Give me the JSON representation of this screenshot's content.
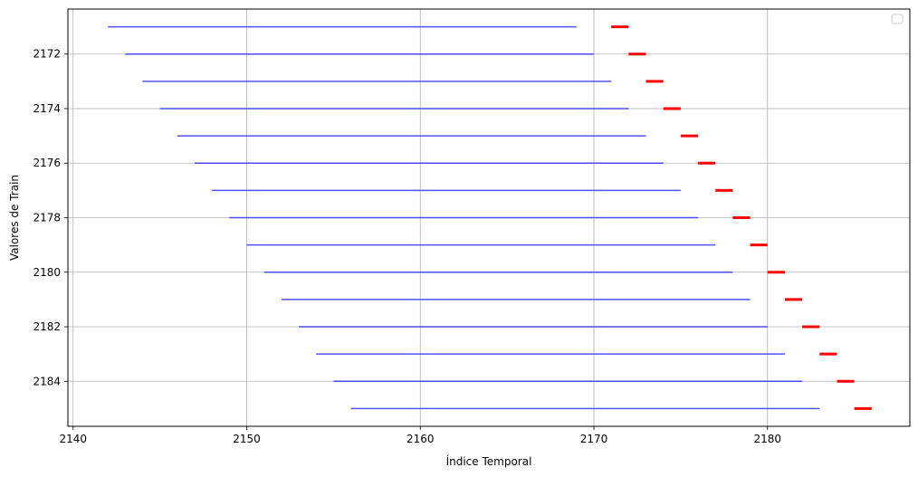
{
  "chart_data": {
    "type": "line",
    "title": "",
    "xlabel": "Índice Temporal",
    "ylabel": "Valores de Train",
    "xlim": [
      2139.7,
      2188.2
    ],
    "ylim": [
      2185.65,
      2170.35
    ],
    "y_inverted": true,
    "grid": true,
    "legend": {
      "placement": "top-right",
      "entries": []
    },
    "xticks": [
      2140,
      2150,
      2160,
      2170,
      2180
    ],
    "yticks": [
      2172,
      2174,
      2176,
      2178,
      2180,
      2182,
      2184
    ],
    "colors": {
      "train": "#3333ff",
      "target": "#ff0000",
      "grid": "#b0b0b0"
    },
    "series": [
      {
        "kind": "train_window",
        "color": "#3333ff",
        "segments": [
          {
            "y": 2171,
            "x_start": 2142,
            "x_end": 2169
          },
          {
            "y": 2172,
            "x_start": 2143,
            "x_end": 2170
          },
          {
            "y": 2173,
            "x_start": 2144,
            "x_end": 2171
          },
          {
            "y": 2174,
            "x_start": 2145,
            "x_end": 2172
          },
          {
            "y": 2175,
            "x_start": 2146,
            "x_end": 2173
          },
          {
            "y": 2176,
            "x_start": 2147,
            "x_end": 2174
          },
          {
            "y": 2177,
            "x_start": 2148,
            "x_end": 2175
          },
          {
            "y": 2178,
            "x_start": 2149,
            "x_end": 2176
          },
          {
            "y": 2179,
            "x_start": 2150,
            "x_end": 2177
          },
          {
            "y": 2180,
            "x_start": 2151,
            "x_end": 2178
          },
          {
            "y": 2181,
            "x_start": 2152,
            "x_end": 2179
          },
          {
            "y": 2182,
            "x_start": 2153,
            "x_end": 2180
          },
          {
            "y": 2183,
            "x_start": 2154,
            "x_end": 2181
          },
          {
            "y": 2184,
            "x_start": 2155,
            "x_end": 2182
          },
          {
            "y": 2185,
            "x_start": 2156,
            "x_end": 2183
          }
        ]
      },
      {
        "kind": "target",
        "color": "#ff0000",
        "segments": [
          {
            "y": 2171,
            "x_start": 2171,
            "x_end": 2172
          },
          {
            "y": 2172,
            "x_start": 2172,
            "x_end": 2173
          },
          {
            "y": 2173,
            "x_start": 2173,
            "x_end": 2174
          },
          {
            "y": 2174,
            "x_start": 2174,
            "x_end": 2175
          },
          {
            "y": 2175,
            "x_start": 2175,
            "x_end": 2176
          },
          {
            "y": 2176,
            "x_start": 2176,
            "x_end": 2177
          },
          {
            "y": 2177,
            "x_start": 2177,
            "x_end": 2178
          },
          {
            "y": 2178,
            "x_start": 2178,
            "x_end": 2179
          },
          {
            "y": 2179,
            "x_start": 2179,
            "x_end": 2180
          },
          {
            "y": 2180,
            "x_start": 2180,
            "x_end": 2181
          },
          {
            "y": 2181,
            "x_start": 2181,
            "x_end": 2182
          },
          {
            "y": 2182,
            "x_start": 2182,
            "x_end": 2183
          },
          {
            "y": 2183,
            "x_start": 2183,
            "x_end": 2184
          },
          {
            "y": 2184,
            "x_start": 2184,
            "x_end": 2185
          },
          {
            "y": 2185,
            "x_start": 2185,
            "x_end": 2186
          }
        ]
      }
    ]
  }
}
